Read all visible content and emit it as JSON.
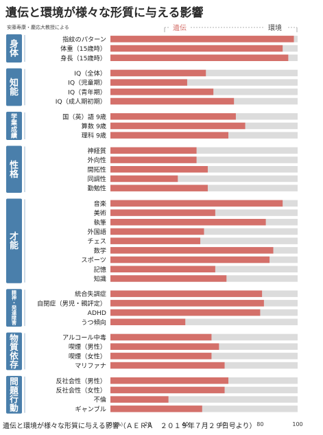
{
  "header": {
    "title": "遺伝と環境が様々な形質に与える影響",
    "subtitle": "安藤寿康・慶応大教授による"
  },
  "legend": {
    "genetic_label": "遺伝",
    "environment_label": "環境"
  },
  "caption": "遺伝と環境が様々な形質に与える影響（ＡＥＲＡ　２０１９年７月２９日号より）",
  "colors": {
    "genetic": "#d4706a",
    "environment": "#dcdcdc",
    "category_box": "#4a7fab",
    "category_text": "#ffffff",
    "title": "#2b2b2b"
  },
  "chart_data": {
    "type": "bar",
    "orientation": "horizontal",
    "stacked": true,
    "xlim": [
      0,
      100
    ],
    "x_ticks": [
      "0",
      "20",
      "40",
      "60",
      "80",
      "100"
    ],
    "x_unit": "(%)",
    "series": [
      {
        "name": "遺伝"
      },
      {
        "name": "環境"
      }
    ],
    "groups": [
      {
        "label": "身体",
        "items": [
          {
            "label": "指紋のパターン",
            "value": 98
          },
          {
            "label": "体重（15歳時）",
            "value": 92
          },
          {
            "label": "身長（15歳時）",
            "value": 95
          }
        ]
      },
      {
        "label": "知能",
        "items": [
          {
            "label": "IQ（全体）",
            "value": 51
          },
          {
            "label": "IQ（児童期）",
            "value": 41
          },
          {
            "label": "IQ（青年期）",
            "value": 55
          },
          {
            "label": "IQ（成人期初期）",
            "value": 66
          }
        ]
      },
      {
        "label": "学業成績",
        "items": [
          {
            "label": "国（英）語 9歳",
            "value": 67
          },
          {
            "label": "算数 9歳",
            "value": 72
          },
          {
            "label": "理科 9歳",
            "value": 63
          }
        ]
      },
      {
        "label": "性格",
        "items": [
          {
            "label": "神経質",
            "value": 46
          },
          {
            "label": "外向性",
            "value": 46
          },
          {
            "label": "開拓性",
            "value": 52
          },
          {
            "label": "同調性",
            "value": 36
          },
          {
            "label": "勤勉性",
            "value": 52
          }
        ]
      },
      {
        "label": "才能",
        "items": [
          {
            "label": "音楽",
            "value": 92
          },
          {
            "label": "美術",
            "value": 56
          },
          {
            "label": "執筆",
            "value": 83
          },
          {
            "label": "外国語",
            "value": 50
          },
          {
            "label": "チェス",
            "value": 48
          },
          {
            "label": "数学",
            "value": 87
          },
          {
            "label": "スポーツ",
            "value": 85
          },
          {
            "label": "記憶",
            "value": 56
          },
          {
            "label": "知識",
            "value": 62
          }
        ]
      },
      {
        "label": "精神・発達障害",
        "items": [
          {
            "label": "統合失調症",
            "value": 81
          },
          {
            "label": "自閉症（男児・親評定）",
            "value": 82
          },
          {
            "label": "ADHD",
            "value": 80
          },
          {
            "label": "うつ傾向",
            "value": 40
          }
        ]
      },
      {
        "label": "物質依存",
        "items": [
          {
            "label": "アルコール中毒",
            "value": 54
          },
          {
            "label": "喫煙（男性）",
            "value": 58
          },
          {
            "label": "喫煙（女性）",
            "value": 54
          },
          {
            "label": "マリファナ",
            "value": 61
          }
        ]
      },
      {
        "label": "問題行動",
        "items": [
          {
            "label": "反社会性（男性）",
            "value": 63
          },
          {
            "label": "反社会性（女性）",
            "value": 61
          },
          {
            "label": "不倫",
            "value": 31
          },
          {
            "label": "ギャンブル",
            "value": 49
          }
        ]
      }
    ]
  }
}
